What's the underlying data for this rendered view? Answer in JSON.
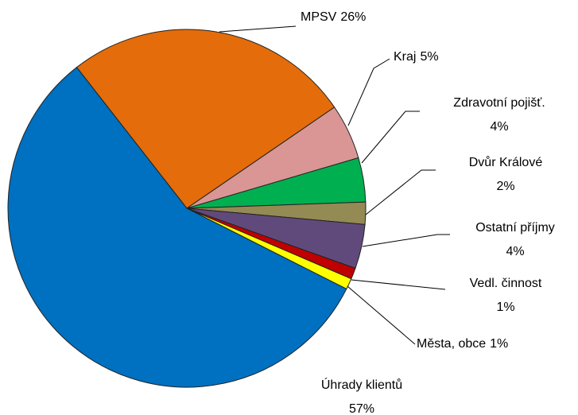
{
  "chart_data": {
    "type": "pie",
    "categories": [
      "MPSV",
      "Kraj",
      "Zdravotní pojišť.",
      "Dvůr Králové",
      "Ostatní příjmy",
      "Vedl. činnost",
      "Města, obce",
      "Úhrady klientů"
    ],
    "values": [
      26,
      5,
      4,
      2,
      4,
      1,
      1,
      57
    ],
    "value_labels": [
      "26%",
      "5%",
      "4%",
      "2%",
      "4%",
      "1%",
      "1%",
      "57%"
    ],
    "colors": [
      "#e46c0a",
      "#d99694",
      "#00b050",
      "#948a54",
      "#604a7b",
      "#c00000",
      "#ffff00",
      "#0070c0"
    ]
  }
}
